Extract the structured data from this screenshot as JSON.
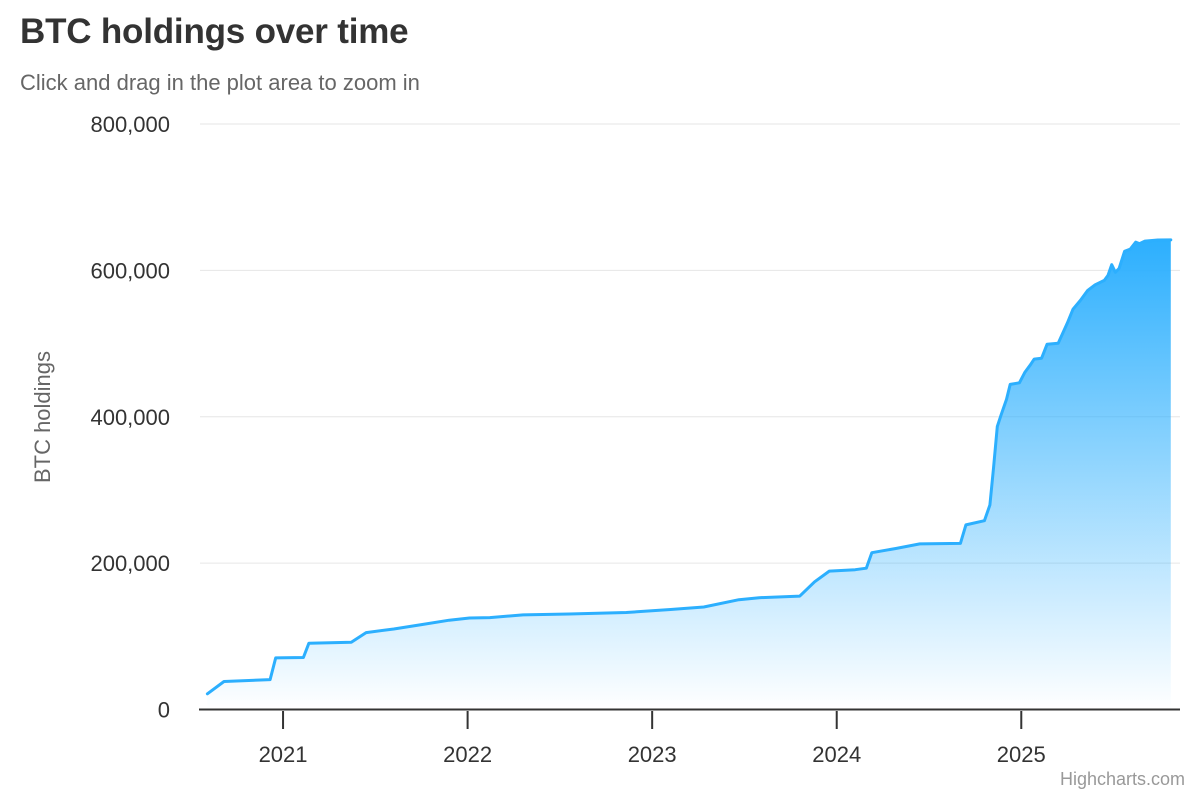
{
  "chart_data": {
    "type": "area",
    "title": "BTC holdings over time",
    "subtitle": "Click and drag in the plot area to zoom in",
    "xlabel": "",
    "ylabel": "BTC holdings",
    "credits": "Highcharts.com",
    "legend": false,
    "grid": true,
    "xlim": [
      2020.55,
      2025.86
    ],
    "ylim": [
      0,
      800000
    ],
    "xticks": [
      {
        "value": 2021,
        "label": "2021"
      },
      {
        "value": 2022,
        "label": "2022"
      },
      {
        "value": 2023,
        "label": "2023"
      },
      {
        "value": 2024,
        "label": "2024"
      },
      {
        "value": 2025,
        "label": "2025"
      }
    ],
    "yticks": [
      {
        "value": 0,
        "label": "0"
      },
      {
        "value": 200000,
        "label": "200,000"
      },
      {
        "value": 400000,
        "label": "400,000"
      },
      {
        "value": 600000,
        "label": "600,000"
      },
      {
        "value": 800000,
        "label": "800,000"
      }
    ],
    "colors": {
      "series_line": "#2caffe",
      "area_gradient_top": "rgba(44,175,254,1)",
      "area_gradient_bottom": "rgba(44,175,254,0)",
      "grid_line": "#e6e6e6",
      "axis_line": "#333333",
      "tick_mark": "#333333",
      "title_text": "#333333",
      "subtitle_text": "#666666",
      "axis_label_text": "#333333",
      "axis_title_text": "#666666",
      "credits_text": "#999999"
    },
    "series": [
      {
        "name": "BTC holdings",
        "points": [
          [
            2020.59,
            21454
          ],
          [
            2020.68,
            38250
          ],
          [
            2020.93,
            40824
          ],
          [
            2020.96,
            70470
          ],
          [
            2021.11,
            71079
          ],
          [
            2021.14,
            90531
          ],
          [
            2021.37,
            91850
          ],
          [
            2021.45,
            105085
          ],
          [
            2021.6,
            110000
          ],
          [
            2021.75,
            116000
          ],
          [
            2021.9,
            122000
          ],
          [
            2022.01,
            125051
          ],
          [
            2022.12,
            125500
          ],
          [
            2022.3,
            129218
          ],
          [
            2022.55,
            130500
          ],
          [
            2022.86,
            132500
          ],
          [
            2023.1,
            136700
          ],
          [
            2023.28,
            140000
          ],
          [
            2023.47,
            150000
          ],
          [
            2023.58,
            152800
          ],
          [
            2023.8,
            155000
          ],
          [
            2023.88,
            174530
          ],
          [
            2023.96,
            189150
          ],
          [
            2024.1,
            191000
          ],
          [
            2024.16,
            193000
          ],
          [
            2024.19,
            214246
          ],
          [
            2024.32,
            220000
          ],
          [
            2024.45,
            226331
          ],
          [
            2024.67,
            227000
          ],
          [
            2024.7,
            252220
          ],
          [
            2024.8,
            258000
          ],
          [
            2024.83,
            279420
          ],
          [
            2024.85,
            331200
          ],
          [
            2024.87,
            386700
          ],
          [
            2024.89,
            402100
          ],
          [
            2024.92,
            423650
          ],
          [
            2024.94,
            444262
          ],
          [
            2024.99,
            446400
          ],
          [
            2025.02,
            461000
          ],
          [
            2025.05,
            471107
          ],
          [
            2025.07,
            478740
          ],
          [
            2025.11,
            480000
          ],
          [
            2025.14,
            499096
          ],
          [
            2025.2,
            500500
          ],
          [
            2025.25,
            528185
          ],
          [
            2025.28,
            547000
          ],
          [
            2025.32,
            558900
          ],
          [
            2025.36,
            572600
          ],
          [
            2025.4,
            580250
          ],
          [
            2025.45,
            586300
          ],
          [
            2025.47,
            593200
          ],
          [
            2025.49,
            607770
          ],
          [
            2025.51,
            597325
          ],
          [
            2025.53,
            602700
          ],
          [
            2025.56,
            626000
          ],
          [
            2025.59,
            628946
          ],
          [
            2025.62,
            638460
          ],
          [
            2025.64,
            636500
          ],
          [
            2025.67,
            640031
          ],
          [
            2025.74,
            641500
          ],
          [
            2025.81,
            641692
          ]
        ]
      }
    ]
  }
}
